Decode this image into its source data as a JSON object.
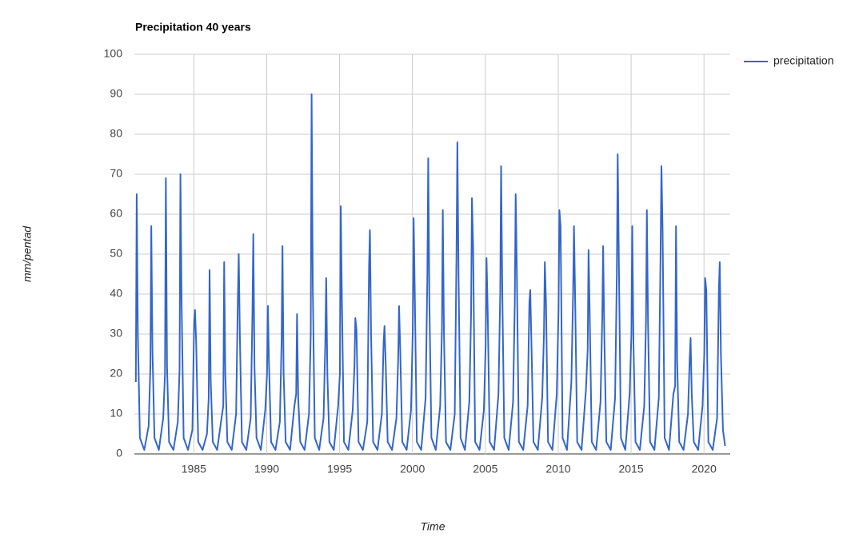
{
  "chart_data": {
    "type": "line",
    "title": "Precipitation 40 years",
    "x_label": "Time",
    "y_label": "mm/pentad",
    "xlim": [
      1980.92,
      2021.8
    ],
    "xticks": [
      1985,
      1990,
      1995,
      2000,
      2005,
      2010,
      2015,
      2020
    ],
    "ylim": [
      0,
      100
    ],
    "yticks": [
      0,
      10,
      20,
      30,
      40,
      50,
      60,
      70,
      80,
      90,
      100
    ],
    "grid": true,
    "legend": "right",
    "x": [
      1981.02,
      1981.08,
      1981.16,
      1981.3,
      1981.6,
      1981.9,
      1982.02,
      1982.08,
      1982.16,
      1982.3,
      1982.6,
      1982.9,
      1983.02,
      1983.08,
      1983.16,
      1983.3,
      1983.6,
      1983.9,
      1984.02,
      1984.08,
      1984.16,
      1984.3,
      1984.6,
      1984.9,
      1985.02,
      1985.08,
      1985.16,
      1985.3,
      1985.6,
      1985.9,
      1986.02,
      1986.08,
      1986.16,
      1986.3,
      1986.6,
      1986.9,
      1987.02,
      1987.08,
      1987.16,
      1987.3,
      1987.6,
      1987.9,
      1988.02,
      1988.08,
      1988.16,
      1988.3,
      1988.6,
      1988.9,
      1989.02,
      1989.08,
      1989.16,
      1989.3,
      1989.6,
      1989.9,
      1990.02,
      1990.08,
      1990.16,
      1990.3,
      1990.6,
      1990.9,
      1991.02,
      1991.08,
      1991.16,
      1991.3,
      1991.6,
      1991.9,
      1992.02,
      1992.08,
      1992.16,
      1992.3,
      1992.6,
      1992.9,
      1993.02,
      1993.08,
      1993.16,
      1993.3,
      1993.6,
      1993.9,
      1994.02,
      1994.08,
      1994.16,
      1994.3,
      1994.6,
      1994.9,
      1995.02,
      1995.08,
      1995.16,
      1995.3,
      1995.6,
      1995.9,
      1996.02,
      1996.08,
      1996.16,
      1996.3,
      1996.6,
      1996.9,
      1997.02,
      1997.08,
      1997.16,
      1997.3,
      1997.6,
      1997.9,
      1998.02,
      1998.08,
      1998.16,
      1998.3,
      1998.6,
      1998.9,
      1999.02,
      1999.08,
      1999.16,
      1999.3,
      1999.6,
      1999.9,
      2000.02,
      2000.08,
      2000.16,
      2000.3,
      2000.6,
      2000.9,
      2001.02,
      2001.08,
      2001.16,
      2001.3,
      2001.6,
      2001.9,
      2002.02,
      2002.08,
      2002.16,
      2002.3,
      2002.6,
      2002.9,
      2003.02,
      2003.08,
      2003.16,
      2003.3,
      2003.6,
      2003.9,
      2004.02,
      2004.08,
      2004.16,
      2004.3,
      2004.6,
      2004.9,
      2005.02,
      2005.08,
      2005.16,
      2005.3,
      2005.6,
      2005.9,
      2006.02,
      2006.08,
      2006.16,
      2006.3,
      2006.6,
      2006.9,
      2007.02,
      2007.08,
      2007.16,
      2007.3,
      2007.6,
      2007.9,
      2008.02,
      2008.08,
      2008.16,
      2008.3,
      2008.6,
      2008.9,
      2009.02,
      2009.08,
      2009.16,
      2009.3,
      2009.6,
      2009.9,
      2010.02,
      2010.08,
      2010.16,
      2010.3,
      2010.6,
      2010.9,
      2011.02,
      2011.08,
      2011.16,
      2011.3,
      2011.6,
      2011.9,
      2012.02,
      2012.08,
      2012.16,
      2012.3,
      2012.6,
      2012.9,
      2013.02,
      2013.08,
      2013.16,
      2013.3,
      2013.6,
      2013.9,
      2014.02,
      2014.08,
      2014.16,
      2014.3,
      2014.6,
      2014.9,
      2015.02,
      2015.08,
      2015.16,
      2015.3,
      2015.6,
      2015.9,
      2016.02,
      2016.08,
      2016.16,
      2016.3,
      2016.6,
      2016.9,
      2017.02,
      2017.08,
      2017.16,
      2017.3,
      2017.6,
      2017.9,
      2018.02,
      2018.08,
      2018.16,
      2018.3,
      2018.6,
      2018.9,
      2019.02,
      2019.08,
      2019.16,
      2019.3,
      2019.6,
      2019.9,
      2020.02,
      2020.08,
      2020.16,
      2020.3,
      2020.6,
      2020.9,
      2021.02,
      2021.08,
      2021.16,
      2021.3,
      2021.45
    ],
    "series": [
      {
        "name": "precipitation",
        "color": "#3366cc",
        "values": [
          18,
          65,
          30,
          4,
          1,
          7,
          22,
          57,
          26,
          4,
          1,
          9,
          20,
          69,
          22,
          3,
          1,
          8,
          21,
          70,
          38,
          4,
          1,
          6,
          33,
          36,
          28,
          3,
          1,
          5,
          14,
          46,
          18,
          3,
          1,
          9,
          12,
          48,
          20,
          3,
          1,
          10,
          39,
          50,
          29,
          3,
          1,
          9,
          35,
          55,
          22,
          4,
          1,
          11,
          20,
          37,
          22,
          3,
          1,
          8,
          28,
          52,
          20,
          3,
          1,
          12,
          15,
          35,
          14,
          3,
          1,
          10,
          30,
          90,
          42,
          4,
          1,
          9,
          28,
          44,
          20,
          3,
          1,
          12,
          20,
          62,
          38,
          3,
          1,
          11,
          22,
          34,
          31,
          3,
          1,
          8,
          47,
          56,
          30,
          3,
          1,
          10,
          28,
          32,
          23,
          3,
          1,
          9,
          24,
          37,
          26,
          3,
          1,
          11,
          31,
          59,
          40,
          3,
          1,
          14,
          44,
          74,
          38,
          4,
          1,
          12,
          31,
          61,
          30,
          3,
          1,
          10,
          50,
          78,
          45,
          4,
          1,
          13,
          35,
          64,
          52,
          3,
          1,
          11,
          27,
          49,
          36,
          3,
          1,
          15,
          40,
          72,
          41,
          4,
          1,
          13,
          38,
          65,
          46,
          3,
          1,
          12,
          38,
          41,
          28,
          3,
          1,
          14,
          30,
          48,
          38,
          3,
          1,
          15,
          36,
          61,
          57,
          4,
          1,
          18,
          40,
          57,
          39,
          3,
          1,
          16,
          26,
          51,
          35,
          3,
          1,
          13,
          34,
          52,
          30,
          3,
          1,
          14,
          45,
          75,
          48,
          4,
          1,
          15,
          30,
          57,
          28,
          3,
          1,
          12,
          33,
          61,
          33,
          3,
          1,
          14,
          50,
          72,
          56,
          4,
          1,
          15,
          17,
          57,
          23,
          3,
          1,
          10,
          24,
          29,
          15,
          3,
          1,
          12,
          25,
          44,
          41,
          3,
          1,
          9,
          41,
          48,
          25,
          6,
          2
        ]
      }
    ]
  }
}
